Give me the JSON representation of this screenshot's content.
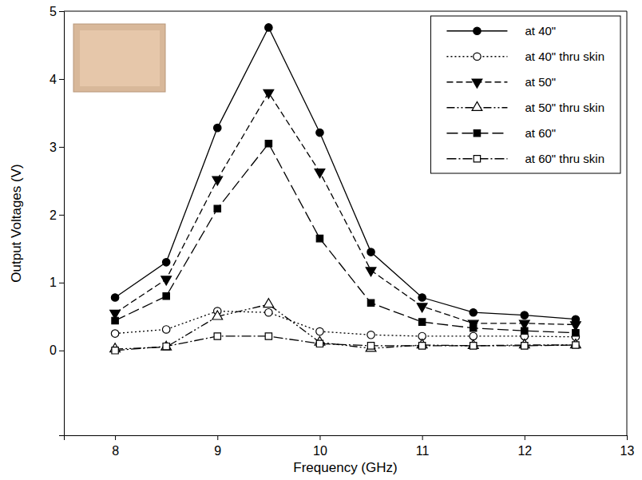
{
  "chart_data": {
    "type": "line",
    "x_label": "Frequency (GHz)",
    "y_label": "Output Voltages (V)",
    "x": [
      8,
      8.5,
      9,
      9.5,
      10,
      10.5,
      11,
      11.5,
      12,
      12.5
    ],
    "xlim": [
      7.5,
      13
    ],
    "xticks": [
      8,
      9,
      10,
      11,
      12,
      13
    ],
    "ylim": [
      -1.25,
      5
    ],
    "yticks": [
      0,
      1,
      2,
      3,
      4,
      5
    ],
    "legend": "top-right",
    "series": [
      {
        "name": "at 40\"",
        "color": "#000000",
        "marker": "circle",
        "line_style": "solid",
        "values": [
          0.78,
          1.3,
          3.28,
          4.76,
          3.21,
          1.45,
          0.78,
          0.56,
          0.52,
          0.46
        ]
      },
      {
        "name": "at 40\" thru skin",
        "color": "#000000",
        "marker": "circle-open",
        "line_style": "dotted",
        "values": [
          0.25,
          0.31,
          0.58,
          0.56,
          0.28,
          0.23,
          0.21,
          0.21,
          0.21,
          0.2
        ]
      },
      {
        "name": "at 50\"",
        "color": "#000000",
        "marker": "triangle-down",
        "line_style": "dashed",
        "values": [
          0.55,
          1.05,
          2.52,
          3.8,
          2.63,
          1.18,
          0.65,
          0.4,
          0.4,
          0.38
        ]
      },
      {
        "name": "at 50\" thru skin",
        "color": "#000000",
        "marker": "triangle-up-open",
        "line_style": "dash-dot-dot",
        "values": [
          0.02,
          0.05,
          0.5,
          0.68,
          0.12,
          0.03,
          0.08,
          0.07,
          0.08,
          0.08
        ]
      },
      {
        "name": "at 60\"",
        "color": "#000000",
        "marker": "square",
        "line_style": "long-dash",
        "values": [
          0.44,
          0.8,
          2.09,
          3.05,
          1.65,
          0.7,
          0.42,
          0.33,
          0.29,
          0.26
        ]
      },
      {
        "name": "at 60\" thru skin",
        "color": "#000000",
        "marker": "square-open",
        "line_style": "dash-dot",
        "values": [
          0.0,
          0.06,
          0.21,
          0.21,
          0.1,
          0.07,
          0.07,
          0.07,
          0.07,
          0.08
        ]
      }
    ]
  }
}
